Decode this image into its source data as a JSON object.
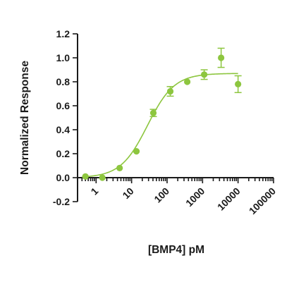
{
  "colors": {
    "series": "#8dc63f",
    "axis": "#1a1a1a"
  },
  "chart_data": {
    "type": "scatter",
    "title": "",
    "xlabel": "[BMP4] pM",
    "ylabel": "Normalized Response",
    "x_scale": "log",
    "xlim": [
      0.3,
      100000
    ],
    "ylim": [
      -0.2,
      1.2
    ],
    "x_ticks": [
      1,
      10,
      100,
      1000,
      10000,
      100000
    ],
    "x_tick_labels": [
      "1",
      "10",
      "100",
      "1000",
      "10000",
      "100000"
    ],
    "y_ticks": [
      -0.2,
      0.0,
      0.2,
      0.4,
      0.6,
      0.8,
      1.0,
      1.2
    ],
    "y_tick_labels": [
      "-0.2",
      "0.0",
      "0.2",
      "0.4",
      "0.6",
      "0.8",
      "1.0",
      "1.2"
    ],
    "grid": false,
    "series": [
      {
        "x": [
          0.5,
          1.5,
          4.6,
          13.7,
          41,
          123,
          370,
          1111,
          3333,
          10000
        ],
        "y": [
          0.01,
          0.0,
          0.08,
          0.22,
          0.54,
          0.72,
          0.8,
          0.86,
          1.0,
          0.78
        ],
        "error": [
          0.0,
          0.0,
          0.0,
          0.0,
          0.03,
          0.04,
          0.0,
          0.04,
          0.08,
          0.07
        ]
      }
    ],
    "fit": {
      "model": "4PL",
      "bottom": 0.0,
      "top": 0.87,
      "ec50": 28,
      "hill": 1.15,
      "x_range": [
        0.4,
        10000
      ]
    }
  }
}
